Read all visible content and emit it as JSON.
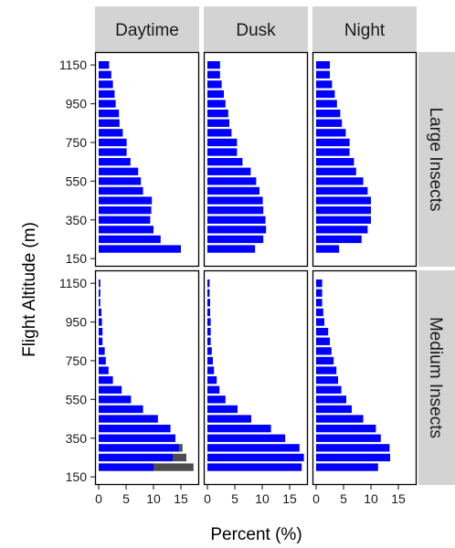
{
  "chart_data": {
    "type": "bar",
    "orientation": "horizontal",
    "xlabel": "Percent (%)",
    "ylabel": "Flight Altitude (m)",
    "column_strips": [
      "Daytime",
      "Dusk",
      "Night"
    ],
    "row_strips": [
      "Large Insects",
      "Medium Insects"
    ],
    "x_ticks": [
      0,
      5,
      10,
      15
    ],
    "xlim": [
      0,
      17.5
    ],
    "y_ticks": [
      150,
      350,
      550,
      750,
      950,
      1150
    ],
    "altitudes": [
      150,
      200,
      250,
      300,
      350,
      400,
      450,
      500,
      550,
      600,
      650,
      700,
      750,
      800,
      850,
      900,
      950,
      1000,
      1050,
      1100,
      1150
    ],
    "colors": {
      "main": "#0000ff",
      "extra": "#4d4d4d",
      "strip_bg": "#d3d3d3"
    },
    "panels": [
      {
        "row": "Large Insects",
        "column": "Daytime",
        "values": [
          null,
          15.0,
          11.3,
          10.0,
          9.4,
          9.6,
          9.7,
          8.1,
          7.7,
          7.2,
          5.8,
          5.1,
          5.1,
          4.4,
          3.8,
          3.7,
          3.1,
          2.9,
          2.6,
          2.3,
          1.9
        ]
      },
      {
        "row": "Large Insects",
        "column": "Dusk",
        "values": [
          null,
          8.7,
          10.2,
          10.7,
          10.6,
          10.2,
          10.1,
          9.5,
          8.9,
          7.9,
          6.4,
          5.4,
          5.4,
          4.4,
          4.0,
          3.8,
          3.3,
          3.0,
          2.6,
          2.3,
          2.3
        ]
      },
      {
        "row": "Large Insects",
        "column": "Night",
        "values": [
          null,
          4.2,
          8.3,
          9.4,
          10.0,
          10.0,
          10.0,
          9.4,
          8.6,
          7.3,
          6.9,
          6.1,
          6.1,
          5.4,
          4.7,
          4.4,
          3.8,
          3.4,
          2.9,
          2.5,
          2.5
        ]
      },
      {
        "row": "Medium Insects",
        "column": "Daytime",
        "values": [
          null,
          10.0,
          13.5,
          14.7,
          14.0,
          13.1,
          10.8,
          8.1,
          5.9,
          4.2,
          2.6,
          1.8,
          1.3,
          1.1,
          0.7,
          0.7,
          0.6,
          0.5,
          0.3,
          0.3,
          0.3
        ],
        "extra": [
          null,
          7.3,
          2.5,
          0.6,
          0,
          0,
          0,
          0,
          0,
          0,
          0,
          0,
          0,
          0,
          0,
          0,
          0,
          0,
          0,
          0,
          0
        ]
      },
      {
        "row": "Medium Insects",
        "column": "Dusk",
        "values": [
          null,
          17.2,
          17.6,
          16.8,
          14.2,
          11.6,
          8.0,
          5.5,
          3.3,
          2.2,
          1.7,
          1.2,
          1.0,
          0.8,
          0.6,
          0.6,
          0.6,
          0.5,
          0.5,
          0.4,
          0.4
        ]
      },
      {
        "row": "Medium Insects",
        "column": "Night",
        "values": [
          null,
          11.3,
          13.5,
          13.4,
          11.8,
          10.9,
          8.6,
          6.5,
          5.5,
          4.6,
          4.0,
          3.7,
          3.2,
          2.8,
          2.5,
          2.2,
          1.5,
          1.3,
          1.1,
          1.1,
          1.1
        ]
      }
    ]
  }
}
